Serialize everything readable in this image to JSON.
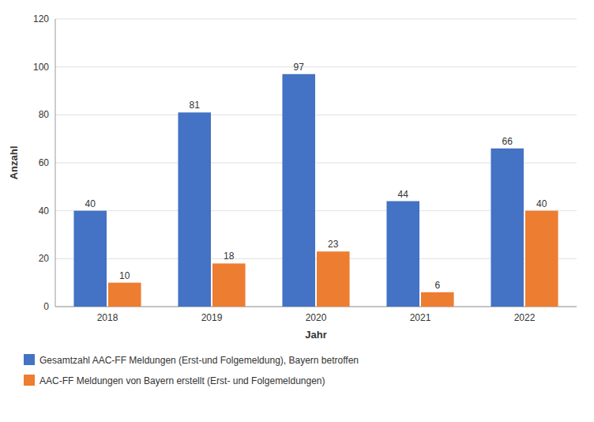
{
  "chart_data": {
    "type": "bar",
    "categories": [
      "2018",
      "2019",
      "2020",
      "2021",
      "2022"
    ],
    "series": [
      {
        "name": "Gesamtzahl AAC-FF Meldungen (Erst-und Folgemeldung), Bayern betroffen",
        "color": "#4472C4",
        "values": [
          40,
          81,
          97,
          44,
          66
        ]
      },
      {
        "name": "AAC-FF Meldungen von Bayern erstellt (Erst- und Folgemeldungen)",
        "color": "#ED7D31",
        "values": [
          10,
          18,
          23,
          6,
          40
        ]
      }
    ],
    "xlabel": "Jahr",
    "ylabel": "Anzahl",
    "ylim": [
      0,
      120
    ],
    "yticks": [
      0,
      20,
      40,
      60,
      80,
      100,
      120
    ],
    "grid": true,
    "data_labels": true,
    "legend": "bottom"
  }
}
